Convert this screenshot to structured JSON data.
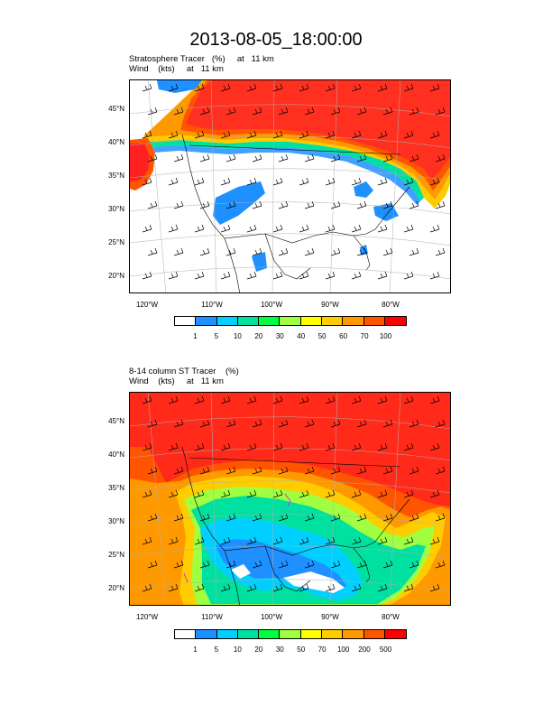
{
  "title": "2013-08-05_18:00:00",
  "panels": [
    {
      "subtitle_line1": "Stratosphere Tracer   (%)     at   11 km",
      "subtitle_line2": "Wind    (kts)     at   11 km",
      "lat_labels": [
        "45°N",
        "40°N",
        "35°N",
        "30°N",
        "25°N",
        "20°N"
      ],
      "lon_labels": [
        "120°W",
        "110°W",
        "100°W",
        "90°W",
        "80°W"
      ],
      "colorbar_labels": [
        "1",
        "5",
        "10",
        "20",
        "30",
        "40",
        "50",
        "60",
        "70",
        "100"
      ]
    },
    {
      "subtitle_line1": "8-14 column ST Tracer    (%)",
      "subtitle_line2": "Wind    (kts)     at   11 km",
      "lat_labels": [
        "45°N",
        "40°N",
        "35°N",
        "30°N",
        "25°N",
        "20°N"
      ],
      "lon_labels": [
        "120°W",
        "110°W",
        "100°W",
        "90°W",
        "80°W"
      ],
      "colorbar_labels": [
        "1",
        "5",
        "10",
        "20",
        "30",
        "50",
        "70",
        "100",
        "200",
        "500"
      ]
    }
  ],
  "colorbar_colors": [
    "#ffffff",
    "#1e90ff",
    "#00cfff",
    "#00e0a0",
    "#00ff40",
    "#a0ff40",
    "#ffff00",
    "#ffcc00",
    "#ff9900",
    "#ff5500",
    "#ff0000"
  ]
}
